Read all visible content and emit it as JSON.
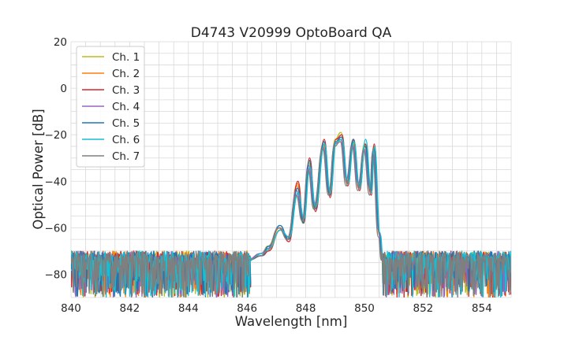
{
  "chart_data": {
    "type": "line",
    "title": "D4743 V20999 OptoBoard QA",
    "xlabel": "Wavelength [nm]",
    "ylabel": "Optical Power [dB]",
    "xlim": [
      840,
      855
    ],
    "ylim": [
      -90,
      20
    ],
    "xticks": [
      840,
      842,
      844,
      846,
      848,
      850,
      852,
      854
    ],
    "yticks": [
      -80,
      -60,
      -40,
      -20,
      0,
      20
    ],
    "xtick_labels": [
      "840",
      "842",
      "844",
      "846",
      "848",
      "850",
      "852",
      "854"
    ],
    "ytick_labels": [
      "−80",
      "−60",
      "−40",
      "−20",
      "0",
      "20"
    ],
    "grid": true,
    "legend_position": "top-left",
    "noise_floor": [
      -90,
      -71
    ],
    "series": [
      {
        "name": "Ch. 1",
        "color": "#bcbd22",
        "shift": 0.0,
        "points": [
          [
            846.0,
            -74
          ],
          [
            846.5,
            -71
          ],
          [
            846.7,
            -68
          ],
          [
            847.1,
            -60
          ],
          [
            847.4,
            -64
          ],
          [
            847.7,
            -42
          ],
          [
            847.9,
            -58
          ],
          [
            848.1,
            -32
          ],
          [
            848.3,
            -52
          ],
          [
            848.6,
            -24
          ],
          [
            848.8,
            -45
          ],
          [
            849.0,
            -22
          ],
          [
            849.2,
            -19
          ],
          [
            849.4,
            -40
          ],
          [
            849.6,
            -23
          ],
          [
            849.8,
            -42
          ],
          [
            850.0,
            -24
          ],
          [
            850.2,
            -44
          ],
          [
            850.3,
            -26
          ],
          [
            850.5,
            -62
          ],
          [
            850.6,
            -74
          ]
        ]
      },
      {
        "name": "Ch. 2",
        "color": "#ff7f0e",
        "shift": 0.02,
        "points": [
          [
            846.0,
            -74
          ],
          [
            846.5,
            -71
          ],
          [
            846.7,
            -69
          ],
          [
            847.1,
            -60
          ],
          [
            847.4,
            -65
          ],
          [
            847.7,
            -41
          ],
          [
            847.9,
            -57
          ],
          [
            848.1,
            -31
          ],
          [
            848.3,
            -51
          ],
          [
            848.6,
            -23
          ],
          [
            848.8,
            -46
          ],
          [
            849.0,
            -23
          ],
          [
            849.2,
            -21
          ],
          [
            849.4,
            -41
          ],
          [
            849.6,
            -22
          ],
          [
            849.8,
            -43
          ],
          [
            850.0,
            -25
          ],
          [
            850.2,
            -45
          ],
          [
            850.3,
            -25
          ],
          [
            850.5,
            -63
          ],
          [
            850.6,
            -74
          ]
        ]
      },
      {
        "name": "Ch. 3",
        "color": "#d62728",
        "shift": 0.06,
        "points": [
          [
            846.0,
            -74
          ],
          [
            846.5,
            -72
          ],
          [
            846.7,
            -70
          ],
          [
            847.1,
            -61
          ],
          [
            847.4,
            -66
          ],
          [
            847.7,
            -40
          ],
          [
            847.9,
            -58
          ],
          [
            848.1,
            -30
          ],
          [
            848.3,
            -53
          ],
          [
            848.6,
            -22
          ],
          [
            848.8,
            -47
          ],
          [
            849.0,
            -22
          ],
          [
            849.2,
            -20
          ],
          [
            849.4,
            -42
          ],
          [
            849.6,
            -22
          ],
          [
            849.8,
            -44
          ],
          [
            850.0,
            -24
          ],
          [
            850.2,
            -46
          ],
          [
            850.3,
            -24
          ],
          [
            850.5,
            -64
          ],
          [
            850.6,
            -74
          ]
        ]
      },
      {
        "name": "Ch. 4",
        "color": "#9467bd",
        "shift": -0.03,
        "points": [
          [
            846.0,
            -74
          ],
          [
            846.5,
            -71
          ],
          [
            846.7,
            -69
          ],
          [
            847.1,
            -60
          ],
          [
            847.4,
            -64
          ],
          [
            847.7,
            -44
          ],
          [
            847.9,
            -57
          ],
          [
            848.1,
            -33
          ],
          [
            848.3,
            -50
          ],
          [
            848.6,
            -25
          ],
          [
            848.8,
            -44
          ],
          [
            849.0,
            -24
          ],
          [
            849.2,
            -22
          ],
          [
            849.4,
            -39
          ],
          [
            849.6,
            -24
          ],
          [
            849.8,
            -41
          ],
          [
            850.0,
            -26
          ],
          [
            850.2,
            -43
          ],
          [
            850.3,
            -27
          ],
          [
            850.5,
            -61
          ],
          [
            850.6,
            -74
          ]
        ]
      },
      {
        "name": "Ch. 5",
        "color": "#1f77b4",
        "shift": 0.04,
        "points": [
          [
            846.0,
            -74
          ],
          [
            846.5,
            -72
          ],
          [
            846.7,
            -68
          ],
          [
            847.1,
            -59
          ],
          [
            847.4,
            -65
          ],
          [
            847.7,
            -43
          ],
          [
            847.9,
            -58
          ],
          [
            848.1,
            -31
          ],
          [
            848.3,
            -52
          ],
          [
            848.6,
            -23
          ],
          [
            848.8,
            -46
          ],
          [
            849.0,
            -23
          ],
          [
            849.2,
            -21
          ],
          [
            849.4,
            -40
          ],
          [
            849.6,
            -22
          ],
          [
            849.8,
            -42
          ],
          [
            850.0,
            -25
          ],
          [
            850.2,
            -44
          ],
          [
            850.3,
            -26
          ],
          [
            850.5,
            -62
          ],
          [
            850.6,
            -74
          ]
        ]
      },
      {
        "name": "Ch. 6",
        "color": "#17becf",
        "shift": 0.08,
        "points": [
          [
            846.0,
            -74
          ],
          [
            846.5,
            -71
          ],
          [
            846.7,
            -69
          ],
          [
            847.1,
            -61
          ],
          [
            847.4,
            -64
          ],
          [
            847.7,
            -45
          ],
          [
            847.9,
            -56
          ],
          [
            848.1,
            -34
          ],
          [
            848.3,
            -51
          ],
          [
            848.6,
            -24
          ],
          [
            848.8,
            -45
          ],
          [
            849.0,
            -23
          ],
          [
            849.2,
            -22
          ],
          [
            849.4,
            -41
          ],
          [
            849.6,
            -23
          ],
          [
            849.8,
            -43
          ],
          [
            850.0,
            -22
          ],
          [
            850.2,
            -45
          ],
          [
            850.3,
            -25
          ],
          [
            850.5,
            -63
          ],
          [
            850.6,
            -74
          ]
        ]
      },
      {
        "name": "Ch. 7",
        "color": "#7f7f7f",
        "shift": -0.05,
        "points": [
          [
            846.0,
            -74
          ],
          [
            846.5,
            -72
          ],
          [
            846.7,
            -70
          ],
          [
            847.1,
            -60
          ],
          [
            847.4,
            -65
          ],
          [
            847.7,
            -46
          ],
          [
            847.9,
            -57
          ],
          [
            848.1,
            -35
          ],
          [
            848.3,
            -52
          ],
          [
            848.6,
            -26
          ],
          [
            848.8,
            -46
          ],
          [
            849.0,
            -25
          ],
          [
            849.2,
            -23
          ],
          [
            849.4,
            -42
          ],
          [
            849.6,
            -25
          ],
          [
            849.8,
            -44
          ],
          [
            850.0,
            -27
          ],
          [
            850.2,
            -46
          ],
          [
            850.3,
            -28
          ],
          [
            850.5,
            -64
          ],
          [
            850.6,
            -74
          ]
        ]
      }
    ]
  }
}
